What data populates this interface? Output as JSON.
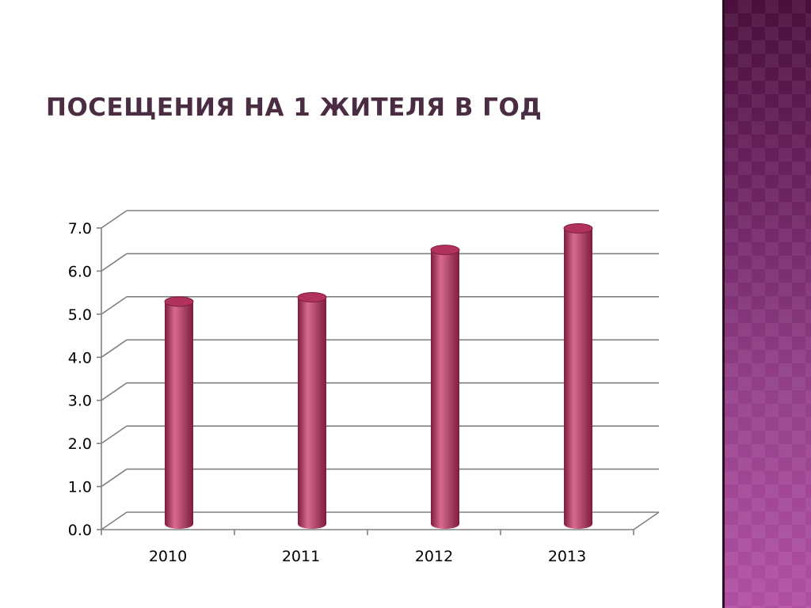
{
  "slide": {
    "title": "ПОСЕЩЕНИЯ НА 1 ЖИТЕЛЯ В ГОД"
  },
  "colors": {
    "bar": "#b2325e",
    "bar_dark": "#7e1c40",
    "bar_light": "#d86a90",
    "grid": "#808080",
    "band_top": "#4a0f3c",
    "band_bottom": "#b14fa3"
  },
  "chart_data": {
    "type": "bar",
    "style": "3d-cylinder",
    "title": "",
    "xlabel": "",
    "ylabel": "",
    "categories": [
      "2010",
      "2011",
      "2012",
      "2013"
    ],
    "values": [
      5.2,
      5.3,
      6.4,
      6.9
    ],
    "ylim": [
      0,
      7
    ],
    "yticks": [
      "0.0",
      "1.0",
      "2.0",
      "3.0",
      "4.0",
      "5.0",
      "6.0",
      "7.0"
    ],
    "grid": true,
    "legend": "none"
  }
}
